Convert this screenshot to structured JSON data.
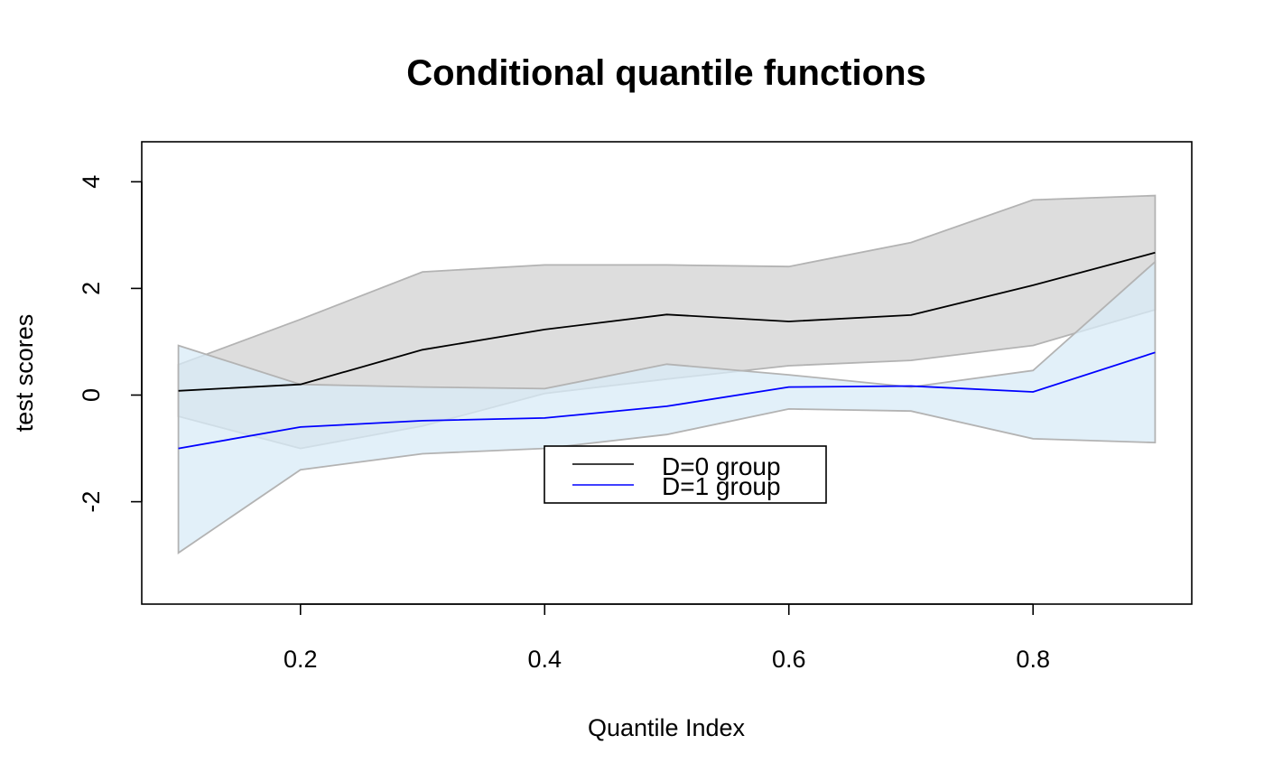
{
  "chart_data": {
    "type": "line",
    "title": "Conditional quantile functions",
    "xlabel": "Quantile Index",
    "ylabel": "test scores",
    "xlim": [
      0.07,
      0.93
    ],
    "ylim": [
      -3.92,
      4.75
    ],
    "x_ticks": [
      0.2,
      0.4,
      0.6,
      0.8
    ],
    "x_tick_labels": [
      "0.2",
      "0.4",
      "0.6",
      "0.8"
    ],
    "y_ticks": [
      -2,
      0,
      2,
      4
    ],
    "y_tick_labels": [
      "-2",
      "0",
      "2",
      "4"
    ],
    "x": [
      0.1,
      0.2,
      0.3,
      0.4,
      0.5,
      0.6,
      0.7,
      0.8,
      0.9
    ],
    "series": [
      {
        "name": "D=0 group",
        "color": "#000000",
        "band_color": "#dddddd",
        "values": [
          0.08,
          0.2,
          0.85,
          1.23,
          1.51,
          1.38,
          1.5,
          2.06,
          2.67
        ],
        "lower": [
          -0.4,
          -1.0,
          -0.58,
          0.03,
          0.3,
          0.55,
          0.65,
          0.93,
          1.6
        ],
        "upper": [
          0.57,
          1.42,
          2.31,
          2.44,
          2.44,
          2.41,
          2.86,
          3.66,
          3.74
        ]
      },
      {
        "name": "D=1 group",
        "color": "#0000ff",
        "band_color": "#d8ebf7",
        "values": [
          -1.0,
          -0.6,
          -0.48,
          -0.43,
          -0.21,
          0.15,
          0.17,
          0.06,
          0.8
        ],
        "lower": [
          -2.96,
          -1.4,
          -1.1,
          -1.0,
          -0.74,
          -0.26,
          -0.3,
          -0.82,
          -0.89
        ],
        "upper": [
          0.93,
          0.2,
          0.15,
          0.12,
          0.58,
          0.38,
          0.15,
          0.46,
          2.5
        ]
      }
    ],
    "band_stroke": "#b3b3b3",
    "overlap_color": "#c0d1da",
    "legend": {
      "position": "center-bottom",
      "entries": [
        "D=0 group",
        "D=1 group"
      ]
    }
  }
}
